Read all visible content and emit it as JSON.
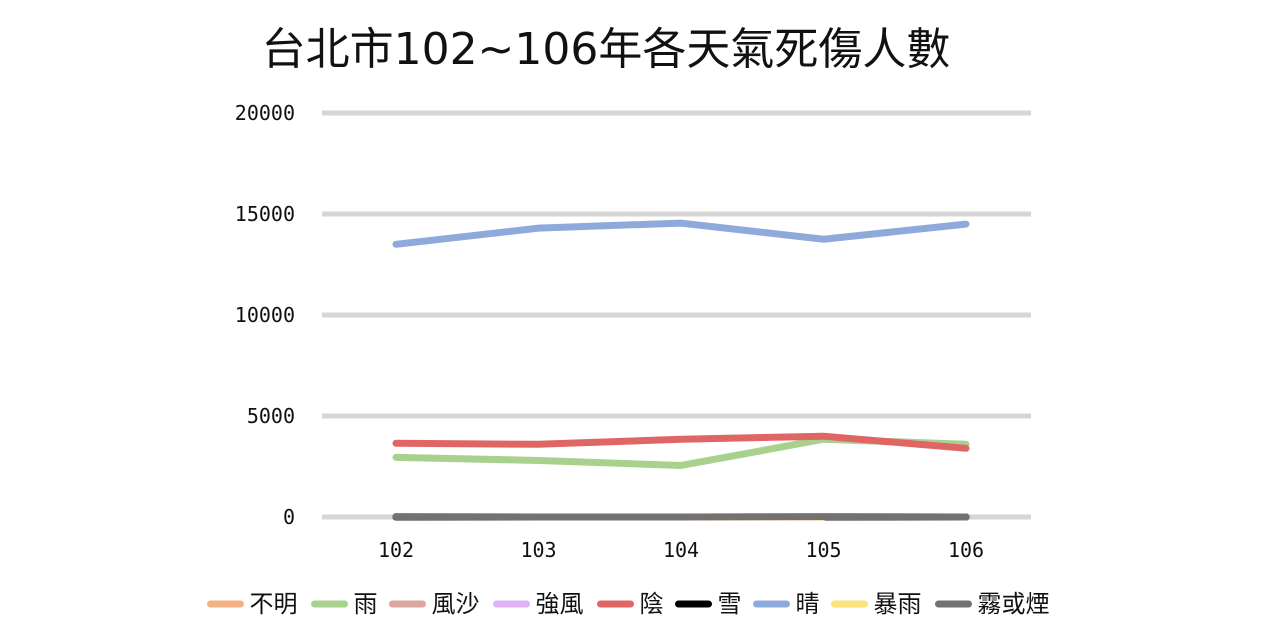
{
  "chart_data": {
    "type": "line",
    "title": "台北市102~106年各天氣死傷人數",
    "xlabel": "",
    "ylabel": "",
    "categories": [
      "102",
      "103",
      "104",
      "105",
      "106"
    ],
    "ylim": [
      0,
      20000
    ],
    "yticks": [
      0,
      5000,
      10000,
      15000,
      20000
    ],
    "grid": true,
    "legend_position": "bottom",
    "series": [
      {
        "name": "不明",
        "color": "#F4B183",
        "values": [
          0,
          0,
          0,
          0,
          0
        ]
      },
      {
        "name": "雨",
        "color": "#A9D18E",
        "values": [
          2950,
          2800,
          2550,
          3850,
          3600
        ]
      },
      {
        "name": "風沙",
        "color": "#D9A6A0",
        "values": [
          0,
          0,
          0,
          0,
          0
        ]
      },
      {
        "name": "強風",
        "color": "#DDB3F5",
        "values": [
          0,
          0,
          0,
          0,
          0
        ]
      },
      {
        "name": "陰",
        "color": "#E06666",
        "values": [
          3650,
          3600,
          3850,
          4000,
          3400
        ]
      },
      {
        "name": "雪",
        "color": "#000000",
        "values": [
          0,
          0,
          0,
          0,
          0
        ]
      },
      {
        "name": "晴",
        "color": "#8EAADB",
        "values": [
          13500,
          14300,
          14550,
          13750,
          14500
        ]
      },
      {
        "name": "暴雨",
        "color": "#F9E37A",
        "values": [
          null,
          0,
          0,
          0,
          null
        ]
      },
      {
        "name": "霧或煙",
        "color": "#767171",
        "values": [
          20,
          0,
          0,
          20,
          0
        ]
      }
    ]
  }
}
